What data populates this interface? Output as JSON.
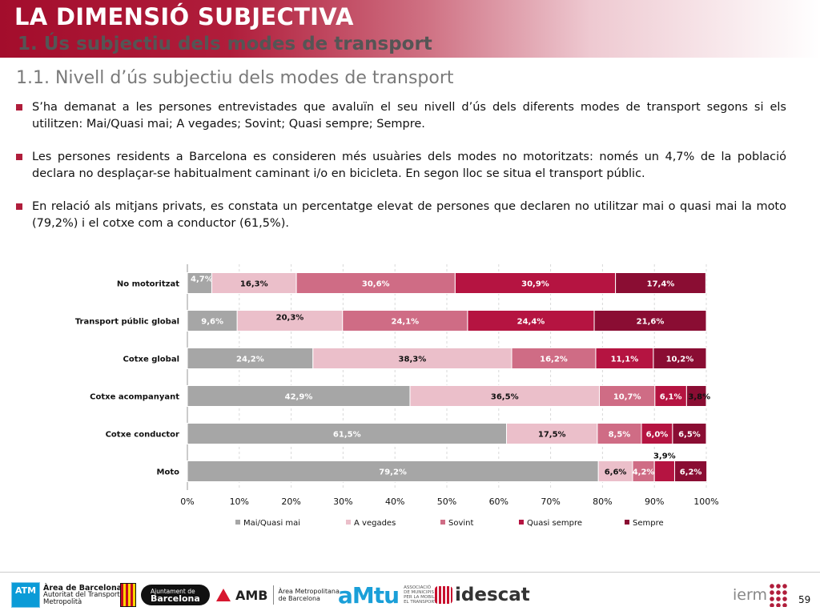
{
  "header": {
    "title": "LA DIMENSIÓ SUBJECTIVA",
    "subtitle": "1. Ús subjectiu dels modes de transport"
  },
  "section_title": "1.1. Nivell d’ús subjectiu dels modes de transport",
  "bullets": [
    "S’ha demanat a les persones entrevistades que avaluïn el seu nivell d’ús dels diferents modes de transport segons si els utilitzen: Mai/Quasi mai; A vegades; Sovint; Quasi sempre; Sempre.",
    "Les persones residents a Barcelona es consideren més usuàries dels modes no motoritzats: només un 4,7% de la població declara no desplaçar-se habitualment caminant i/o en bicicleta. En segon lloc se situa el transport públic.",
    "En relació als mitjans privats, es constata un percentatge elevat de persones que declaren no utilitzar mai o quasi mai la moto (79,2%) i el cotxe com a conductor (61,5%)."
  ],
  "chart_data": {
    "type": "bar",
    "orientation": "horizontal",
    "stacked": true,
    "categories": [
      "No motoritzat",
      "Transport públic global",
      "Cotxe global",
      "Cotxe acompanyant",
      "Cotxe conductor",
      "Moto"
    ],
    "series": [
      {
        "name": "Mai/Quasi mai",
        "values": [
          4.7,
          9.6,
          24.2,
          42.9,
          61.5,
          79.2
        ],
        "labels": [
          "4,7%",
          "9,6%",
          "24,2%",
          "42,9%",
          "61,5%",
          "79,2%"
        ]
      },
      {
        "name": "A vegades",
        "values": [
          16.3,
          20.3,
          38.3,
          36.5,
          17.5,
          6.6
        ],
        "labels": [
          "16,3%",
          "20,3%",
          "38,3%",
          "36,5%",
          "17,5%",
          "6,6%"
        ]
      },
      {
        "name": "Sovint",
        "values": [
          30.6,
          24.1,
          16.2,
          10.7,
          8.5,
          4.2
        ],
        "labels": [
          "30,6%",
          "24,1%",
          "16,2%",
          "10,7%",
          "8,5%",
          "4,2%"
        ]
      },
      {
        "name": "Quasi sempre",
        "values": [
          30.9,
          24.4,
          11.1,
          6.1,
          6.0,
          3.9
        ],
        "labels": [
          "30,9%",
          "24,4%",
          "11,1%",
          "6,1%",
          "6,0%",
          "3,9%"
        ]
      },
      {
        "name": "Sempre",
        "values": [
          17.4,
          21.6,
          10.2,
          3.8,
          6.5,
          6.2
        ],
        "labels": [
          "17,4%",
          "21,6%",
          "10,2%",
          "3,8%",
          "6,5%",
          "6,2%"
        ]
      }
    ],
    "x_ticks": [
      "0%",
      "10%",
      "20%",
      "30%",
      "40%",
      "50%",
      "60%",
      "70%",
      "80%",
      "90%",
      "100%"
    ],
    "xlim": [
      0,
      100
    ],
    "grid": true,
    "legend_position": "bottom",
    "colors": [
      "#a6a6a6",
      "#ebbfca",
      "#cf6c85",
      "#b51441",
      "#8a0d33"
    ],
    "label_colors": [
      "#ffffff",
      "#111111",
      "#ffffff",
      "#ffffff",
      "#ffffff"
    ]
  },
  "footer": {
    "atm": {
      "box": "ATM",
      "line1": "Àrea de Barcelona",
      "line2": "Autoritat del Transport",
      "line3": "Metropolità"
    },
    "ajuntament": {
      "line1": "Ajuntament de",
      "line2": "Barcelona"
    },
    "amb": {
      "name": "AMB",
      "line1": "Àrea Metropolitana",
      "line2": "de Barcelona"
    },
    "amtu": {
      "name": "aMtu",
      "line1": "ASSOCIACIÓ",
      "line2": "DE MUNICIPIS",
      "line3": "PER LA MOBILITAT I",
      "line4": "EL TRANSPORT URBÀ"
    },
    "idescat": "idescat",
    "iermb": "ierm",
    "page_number": "59"
  },
  "brand_colors": {
    "primary": "#b01d3b",
    "secondary_text": "#7a7a7a"
  }
}
